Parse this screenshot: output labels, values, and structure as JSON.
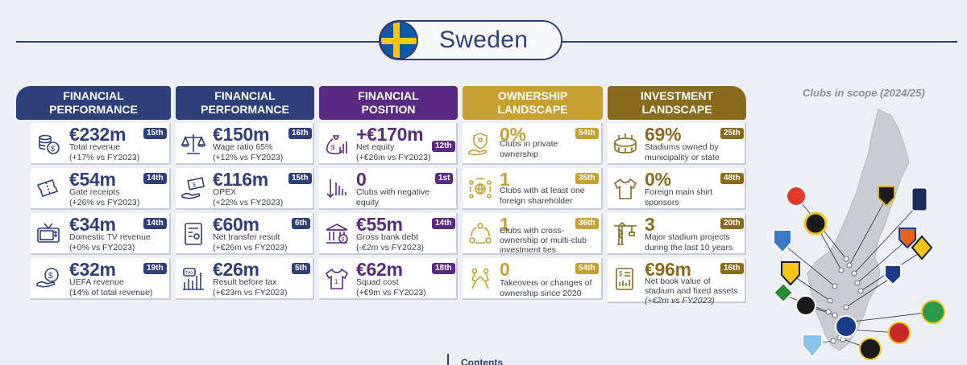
{
  "header": {
    "title": "Sweden"
  },
  "columns": [
    {
      "line1": "FINANCIAL",
      "line2": "PERFORMANCE"
    },
    {
      "line1": "FINANCIAL",
      "line2": "PERFORMANCE"
    },
    {
      "line1": "FINANCIAL",
      "line2": "POSITION"
    },
    {
      "line1": "OWNERSHIP",
      "line2": "LANDSCAPE"
    },
    {
      "line1": "INVESTMENT",
      "line2": "LANDSCAPE"
    }
  ],
  "col1": [
    {
      "value": "€232m",
      "rank": "15th",
      "l1": "Total revenue",
      "l2": "(+17% vs FY2023)",
      "icon": "coins-icon"
    },
    {
      "value": "€54m",
      "rank": "14th",
      "l1": "Gate receipts",
      "l2": "(+26% vs FY2023)",
      "icon": "ticket-icon"
    },
    {
      "value": "€34m",
      "rank": "14th",
      "l1": "Domestic TV revenue",
      "l2": "(+0% vs FY2023)",
      "icon": "tv-icon"
    },
    {
      "value": "€32m",
      "rank": "19th",
      "l1": "UEFA revenue",
      "l2": "(14% of total revenue)",
      "icon": "euro-coin-icon"
    }
  ],
  "col2": [
    {
      "value": "€150m",
      "rank": "16th",
      "l1": "Wage ratio 65%",
      "l2": "(+12% vs FY2023)",
      "icon": "scales-icon"
    },
    {
      "value": "€116m",
      "rank": "15th",
      "l1": "OPEX",
      "l2": "(+22% vs FY2023)",
      "icon": "hand-money-icon"
    },
    {
      "value": "€60m",
      "rank": "6th",
      "l1": "Net transfer result",
      "l2": "(+€26m vs FY2023)",
      "icon": "document-icon"
    },
    {
      "value": "€26m",
      "rank": "5th",
      "l1": "Result before tax",
      "l2": "(+€23m vs FY2023)",
      "icon": "tax-chart-icon"
    }
  ],
  "col3": [
    {
      "value": "+€170m",
      "rank": "12th",
      "l1": "Net equity",
      "l2": "(+€26m vs FY2023)",
      "icon": "money-bag-icon"
    },
    {
      "value": "0",
      "rank": "1st",
      "l1": "Clubs with negative",
      "l2": "equity",
      "icon": "downtrend-icon"
    },
    {
      "value": "€55m",
      "rank": "14th",
      "l1": "Gross bank debt",
      "l2": "(-€2m vs FY2023)",
      "icon": "bank-icon"
    },
    {
      "value": "€62m",
      "rank": "18th",
      "l1": "Squad cost",
      "l2": "(+€9m vs FY2023)",
      "icon": "shirt-icon"
    }
  ],
  "col4": [
    {
      "value": "0%",
      "rank": "54th",
      "l1": "Clubs in private",
      "l2": "ownership",
      "l3": "",
      "icon": "shield-hand-icon"
    },
    {
      "value": "1",
      "rank": "35th",
      "l1": "Clubs with at least one",
      "l2": "foreign shareholder",
      "l3": "",
      "icon": "globe-people-icon"
    },
    {
      "value": "1",
      "rank": "36th",
      "l1": "Clubs with cross-",
      "l2": "ownership or multi-club",
      "l3": "investment ties",
      "icon": "network-icon"
    },
    {
      "value": "0",
      "rank": "54th",
      "l1": "Takeovers or changes of",
      "l2": "ownership since 2020",
      "l3": "",
      "icon": "handshake-icon"
    }
  ],
  "col5": [
    {
      "value": "69%",
      "rank": "25th",
      "l1": "Stadiums owned by",
      "l2": "municipality or state",
      "icon": "stadium-icon"
    },
    {
      "value": "0%",
      "rank": "48th",
      "l1": "Foreign main shirt",
      "l2": "sponsors",
      "icon": "tshirt-icon"
    },
    {
      "value": "3",
      "rank": "20th",
      "l1": "Major stadium projects",
      "l2": "during the last 10 years",
      "icon": "crane-icon"
    },
    {
      "value": "€96m",
      "rank": "16th",
      "l1": "Net book value of",
      "l2": "stadium and fixed assets",
      "l3": "(+€2m vs FY2023)",
      "icon": "invoice-icon"
    }
  ],
  "map": {
    "title": "Clubs in scope (2024/25)"
  },
  "footer": {
    "label": "Contents"
  }
}
